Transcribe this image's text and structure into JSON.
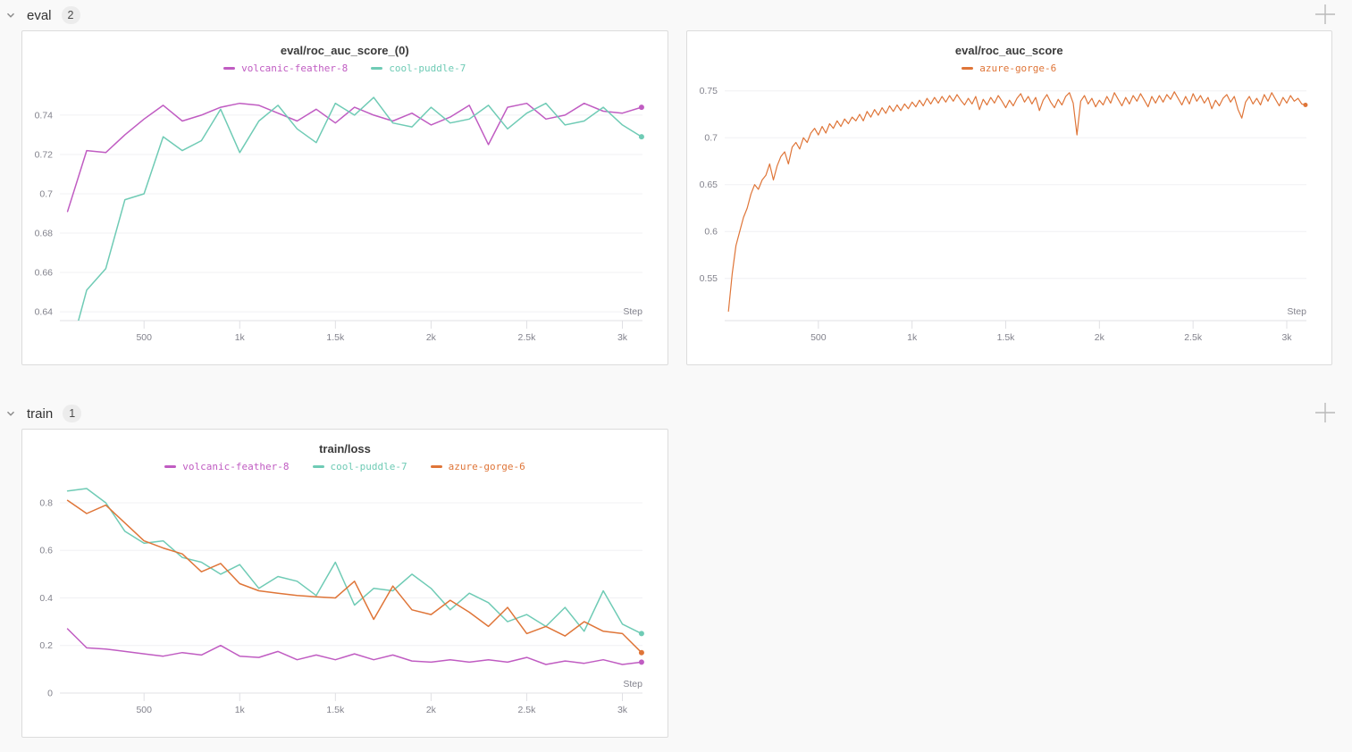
{
  "sections": [
    {
      "label": "eval",
      "count": "2"
    },
    {
      "label": "train",
      "count": "1"
    }
  ],
  "icons": {
    "chevron": "chevron-down",
    "add": "plus"
  },
  "colors": {
    "magenta": "#c05cc2",
    "teal": "#6fcbb5",
    "orange": "#df7538",
    "grid": "#f0f0f3",
    "axis": "#e0e0e4",
    "tick_text": "#82828c",
    "card_border": "#dcdcdc"
  },
  "chart_data": [
    {
      "type": "line",
      "title": "eval/roc_auc_score_(0)",
      "xlabel": "Step",
      "xlim": [
        60,
        3105
      ],
      "ylim": [
        0.6355,
        0.7545
      ],
      "x_ticks": [
        {
          "v": 500,
          "label": "500"
        },
        {
          "v": 1000,
          "label": "1k"
        },
        {
          "v": 1500,
          "label": "1.5k"
        },
        {
          "v": 2000,
          "label": "2k"
        },
        {
          "v": 2500,
          "label": "2.5k"
        },
        {
          "v": 3000,
          "label": "3k"
        }
      ],
      "y_ticks": [
        {
          "v": 0.64,
          "label": "0.64"
        },
        {
          "v": 0.66,
          "label": "0.66"
        },
        {
          "v": 0.68,
          "label": "0.68"
        },
        {
          "v": 0.7,
          "label": "0.7"
        },
        {
          "v": 0.72,
          "label": "0.72"
        },
        {
          "v": 0.74,
          "label": "0.74"
        }
      ],
      "line_width": 1.5,
      "dot_r": 3,
      "series": [
        {
          "name": "volcanic-feather-8",
          "color": "#c05cc2",
          "x_start": 100,
          "x_step": 100,
          "values": [
            0.691,
            0.722,
            0.721,
            0.73,
            0.738,
            0.745,
            0.737,
            0.74,
            0.744,
            0.746,
            0.745,
            0.741,
            0.737,
            0.743,
            0.736,
            0.744,
            0.74,
            0.737,
            0.741,
            0.735,
            0.739,
            0.745,
            0.725,
            0.744,
            0.746,
            0.738,
            0.74,
            0.746,
            0.742,
            0.741,
            0.744
          ]
        },
        {
          "name": "cool-puddle-7",
          "color": "#6fcbb5",
          "x_start": 100,
          "x_step": 100,
          "values": [
            0.615,
            0.651,
            0.662,
            0.697,
            0.7,
            0.729,
            0.722,
            0.727,
            0.743,
            0.721,
            0.737,
            0.745,
            0.733,
            0.726,
            0.746,
            0.74,
            0.749,
            0.736,
            0.734,
            0.744,
            0.736,
            0.738,
            0.745,
            0.733,
            0.741,
            0.746,
            0.735,
            0.737,
            0.744,
            0.735,
            0.729
          ]
        }
      ]
    },
    {
      "type": "line",
      "title": "eval/roc_auc_score",
      "xlabel": "Step",
      "xlim": [
        0,
        3105
      ],
      "ylim": [
        0.505,
        0.7545
      ],
      "x_ticks": [
        {
          "v": 500,
          "label": "500"
        },
        {
          "v": 1000,
          "label": "1k"
        },
        {
          "v": 1500,
          "label": "1.5k"
        },
        {
          "v": 2000,
          "label": "2k"
        },
        {
          "v": 2500,
          "label": "2.5k"
        },
        {
          "v": 3000,
          "label": "3k"
        }
      ],
      "y_ticks": [
        {
          "v": 0.55,
          "label": "0.55"
        },
        {
          "v": 0.6,
          "label": "0.6"
        },
        {
          "v": 0.65,
          "label": "0.65"
        },
        {
          "v": 0.7,
          "label": "0.7"
        },
        {
          "v": 0.75,
          "label": "0.75"
        }
      ],
      "line_width": 1.2,
      "dot_r": 2.5,
      "series": [
        {
          "name": "azure-gorge-6",
          "color": "#df7538",
          "x_start": 20,
          "x_step": 20,
          "values": [
            0.515,
            0.555,
            0.585,
            0.6,
            0.615,
            0.625,
            0.64,
            0.65,
            0.645,
            0.655,
            0.66,
            0.672,
            0.655,
            0.67,
            0.68,
            0.685,
            0.672,
            0.69,
            0.695,
            0.688,
            0.7,
            0.695,
            0.705,
            0.71,
            0.703,
            0.712,
            0.705,
            0.715,
            0.71,
            0.718,
            0.712,
            0.72,
            0.715,
            0.722,
            0.718,
            0.725,
            0.718,
            0.728,
            0.722,
            0.73,
            0.724,
            0.732,
            0.726,
            0.734,
            0.728,
            0.735,
            0.729,
            0.736,
            0.731,
            0.738,
            0.733,
            0.74,
            0.734,
            0.742,
            0.736,
            0.743,
            0.737,
            0.744,
            0.738,
            0.745,
            0.739,
            0.746,
            0.74,
            0.735,
            0.742,
            0.736,
            0.744,
            0.73,
            0.741,
            0.735,
            0.743,
            0.737,
            0.745,
            0.739,
            0.732,
            0.74,
            0.734,
            0.742,
            0.747,
            0.738,
            0.744,
            0.736,
            0.743,
            0.729,
            0.74,
            0.746,
            0.738,
            0.732,
            0.741,
            0.735,
            0.744,
            0.748,
            0.737,
            0.703,
            0.739,
            0.745,
            0.736,
            0.742,
            0.733,
            0.74,
            0.735,
            0.744,
            0.737,
            0.748,
            0.741,
            0.734,
            0.743,
            0.736,
            0.745,
            0.739,
            0.747,
            0.74,
            0.733,
            0.744,
            0.737,
            0.745,
            0.738,
            0.746,
            0.741,
            0.749,
            0.742,
            0.735,
            0.744,
            0.736,
            0.747,
            0.739,
            0.745,
            0.737,
            0.743,
            0.731,
            0.74,
            0.734,
            0.742,
            0.746,
            0.738,
            0.744,
            0.73,
            0.721,
            0.738,
            0.744,
            0.736,
            0.742,
            0.735,
            0.746,
            0.739,
            0.748,
            0.741,
            0.734,
            0.743,
            0.737,
            0.745,
            0.739,
            0.742,
            0.736,
            0.735
          ]
        }
      ]
    },
    {
      "type": "line",
      "title": "train/loss",
      "xlabel": "Step",
      "xlim": [
        60,
        3105
      ],
      "ylim": [
        0,
        0.875
      ],
      "x_ticks": [
        {
          "v": 500,
          "label": "500"
        },
        {
          "v": 1000,
          "label": "1k"
        },
        {
          "v": 1500,
          "label": "1.5k"
        },
        {
          "v": 2000,
          "label": "2k"
        },
        {
          "v": 2500,
          "label": "2.5k"
        },
        {
          "v": 3000,
          "label": "3k"
        }
      ],
      "y_ticks": [
        {
          "v": 0,
          "label": "0"
        },
        {
          "v": 0.2,
          "label": "0.2"
        },
        {
          "v": 0.4,
          "label": "0.4"
        },
        {
          "v": 0.6,
          "label": "0.6"
        },
        {
          "v": 0.8,
          "label": "0.8"
        }
      ],
      "line_width": 1.5,
      "dot_r": 3,
      "series": [
        {
          "name": "volcanic-feather-8",
          "color": "#c05cc2",
          "x_start": 100,
          "x_step": 100,
          "values": [
            0.27,
            0.19,
            0.185,
            0.175,
            0.165,
            0.155,
            0.17,
            0.16,
            0.2,
            0.155,
            0.15,
            0.175,
            0.14,
            0.16,
            0.14,
            0.165,
            0.14,
            0.16,
            0.135,
            0.13,
            0.14,
            0.13,
            0.14,
            0.13,
            0.15,
            0.12,
            0.135,
            0.125,
            0.14,
            0.12,
            0.13
          ]
        },
        {
          "name": "cool-puddle-7",
          "color": "#6fcbb5",
          "x_start": 100,
          "x_step": 100,
          "values": [
            0.85,
            0.86,
            0.8,
            0.68,
            0.63,
            0.64,
            0.57,
            0.55,
            0.5,
            0.54,
            0.44,
            0.49,
            0.47,
            0.41,
            0.55,
            0.37,
            0.44,
            0.43,
            0.5,
            0.44,
            0.35,
            0.42,
            0.38,
            0.3,
            0.33,
            0.28,
            0.36,
            0.26,
            0.43,
            0.29,
            0.25
          ]
        },
        {
          "name": "azure-gorge-6",
          "color": "#df7538",
          "x_start": 100,
          "x_step": 100,
          "values": [
            0.81,
            0.755,
            0.79,
            0.715,
            0.64,
            0.61,
            0.585,
            0.51,
            0.545,
            0.46,
            0.43,
            0.42,
            0.41,
            0.405,
            0.4,
            0.47,
            0.31,
            0.45,
            0.35,
            0.33,
            0.39,
            0.34,
            0.28,
            0.36,
            0.25,
            0.28,
            0.24,
            0.3,
            0.26,
            0.25,
            0.17
          ]
        }
      ]
    }
  ]
}
